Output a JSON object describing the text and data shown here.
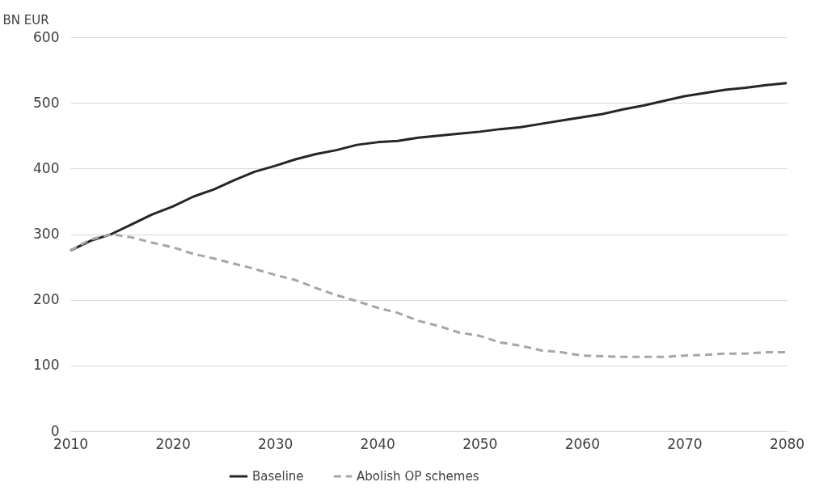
{
  "chart_data": {
    "type": "line",
    "ylabel": "BN EUR",
    "xlim": [
      2010,
      2080
    ],
    "xticks": [
      2010,
      2020,
      2030,
      2040,
      2050,
      2060,
      2070,
      2080
    ],
    "ylim": [
      0,
      600
    ],
    "yticks": [
      0,
      100,
      200,
      300,
      400,
      500,
      600
    ],
    "grid": "y",
    "legend": "bottom",
    "x": [
      2010,
      2012,
      2014,
      2016,
      2018,
      2020,
      2022,
      2024,
      2026,
      2028,
      2030,
      2032,
      2034,
      2036,
      2038,
      2040,
      2042,
      2044,
      2046,
      2048,
      2050,
      2052,
      2054,
      2056,
      2058,
      2060,
      2062,
      2064,
      2066,
      2068,
      2070,
      2072,
      2074,
      2076,
      2078,
      2080
    ],
    "series": [
      {
        "name": "Baseline",
        "color": "#262626",
        "line_style": "solid",
        "values": [
          275,
          290,
          300,
          315,
          330,
          342,
          357,
          368,
          382,
          395,
          404,
          414,
          422,
          428,
          436,
          440,
          442,
          447,
          450,
          453,
          456,
          460,
          463,
          468,
          473,
          478,
          483,
          490,
          496,
          503,
          510,
          515,
          520,
          523,
          527,
          530
        ]
      },
      {
        "name": "Abolish OP schemes",
        "color": "#a6a6a6",
        "line_style": "dashed",
        "values": [
          275,
          292,
          300,
          295,
          287,
          280,
          270,
          263,
          255,
          247,
          238,
          230,
          218,
          207,
          198,
          188,
          180,
          168,
          160,
          150,
          145,
          135,
          130,
          123,
          120,
          115,
          114,
          113,
          113,
          113,
          115,
          116,
          118,
          118,
          120,
          120
        ]
      }
    ]
  }
}
